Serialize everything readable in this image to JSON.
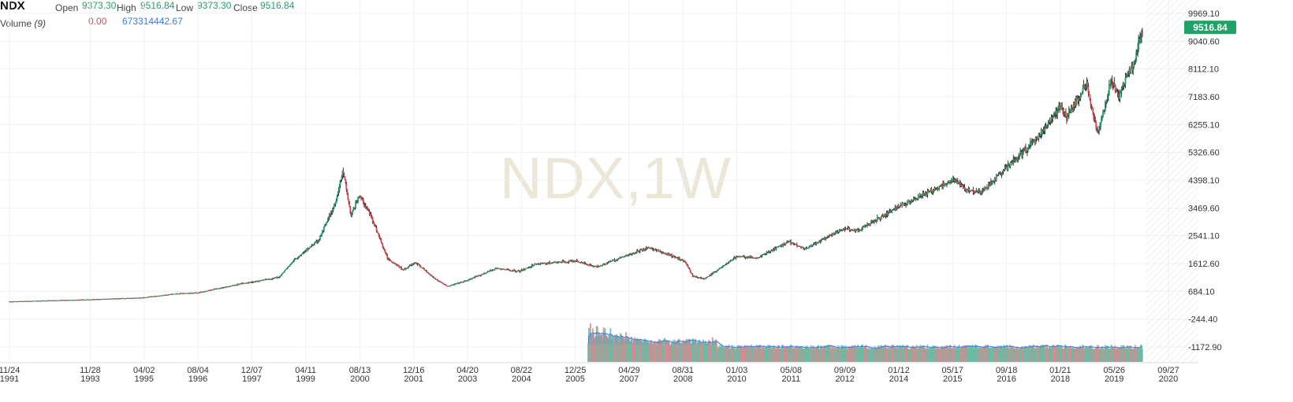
{
  "legend": {
    "symbol": "NDX",
    "open_label": "Open",
    "open_value": "9373.30",
    "high_label": "High",
    "high_value": "9516.84",
    "low_label": "Low",
    "low_value": "9373.30",
    "close_label": "Close",
    "close_value": "9516.84",
    "volume_label": "Volume",
    "volume_param": "(9)",
    "volume_value_1": "0.00",
    "volume_value_2": "673314442.67"
  },
  "watermark": "NDX,1W",
  "colors": {
    "up": "#1ea367",
    "down": "#e0474c",
    "wick": "#111111",
    "grid": "#eef0f3",
    "volume_ma": "#3b7dd8",
    "badge": "#1ea367",
    "watermark": "#ebe6d6"
  },
  "chart_data": {
    "type": "candlestick",
    "interval": "1W",
    "symbol": "NDX",
    "last_price_label": "9516.84",
    "ylim": [
      -1172.9,
      10300
    ],
    "y_ticks": [
      "9969.10",
      "9040.60",
      "8112.10",
      "7183.60",
      "6255.10",
      "5326.60",
      "4398.10",
      "3469.60",
      "2541.10",
      "1612.60",
      "684.10",
      "-244.40",
      "-1172.90"
    ],
    "y_tick_values": [
      9969.1,
      9040.6,
      8112.1,
      7183.6,
      6255.1,
      5326.6,
      4398.1,
      3469.6,
      2541.1,
      1612.6,
      684.1,
      -244.4,
      -1172.9
    ],
    "x_ticks": [
      {
        "date": "11/24",
        "year": "1991",
        "t": 1991.9
      },
      {
        "date": "11/28",
        "year": "1993",
        "t": 1993.91
      },
      {
        "date": "04/02",
        "year": "1995",
        "t": 1995.25
      },
      {
        "date": "08/04",
        "year": "1996",
        "t": 1996.59
      },
      {
        "date": "12/07",
        "year": "1997",
        "t": 1997.93
      },
      {
        "date": "04/11",
        "year": "1999",
        "t": 1999.27
      },
      {
        "date": "08/13",
        "year": "2000",
        "t": 2000.62
      },
      {
        "date": "12/16",
        "year": "2001",
        "t": 2001.96
      },
      {
        "date": "04/20",
        "year": "2003",
        "t": 2003.3
      },
      {
        "date": "08/22",
        "year": "2004",
        "t": 2004.64
      },
      {
        "date": "12/25",
        "year": "2005",
        "t": 2005.98
      },
      {
        "date": "04/29",
        "year": "2007",
        "t": 2007.32
      },
      {
        "date": "08/31",
        "year": "2008",
        "t": 2008.66
      },
      {
        "date": "01/03",
        "year": "2010",
        "t": 2010.0
      },
      {
        "date": "05/08",
        "year": "2011",
        "t": 2011.35
      },
      {
        "date": "09/09",
        "year": "2012",
        "t": 2012.69
      },
      {
        "date": "01/12",
        "year": "2014",
        "t": 2014.03
      },
      {
        "date": "05/17",
        "year": "2015",
        "t": 2015.37
      },
      {
        "date": "09/18",
        "year": "2016",
        "t": 2016.71
      },
      {
        "date": "01/21",
        "year": "2018",
        "t": 2018.05
      },
      {
        "date": "05/26",
        "year": "2019",
        "t": 2019.39
      },
      {
        "date": "09/27",
        "year": "2020",
        "t": 2020.74
      }
    ],
    "series": [
      {
        "name": "NDX",
        "points": [
          {
            "t": 1991.9,
            "v": 340
          },
          {
            "t": 1993.9,
            "v": 410
          },
          {
            "t": 1995.2,
            "v": 470
          },
          {
            "t": 1996.0,
            "v": 600
          },
          {
            "t": 1996.6,
            "v": 640
          },
          {
            "t": 1997.6,
            "v": 920
          },
          {
            "t": 1998.6,
            "v": 1150
          },
          {
            "t": 1999.0,
            "v": 1750
          },
          {
            "t": 1999.6,
            "v": 2400
          },
          {
            "t": 2000.0,
            "v": 3600
          },
          {
            "t": 2000.2,
            "v": 4700
          },
          {
            "t": 2000.4,
            "v": 3200
          },
          {
            "t": 2000.6,
            "v": 3900
          },
          {
            "t": 2000.9,
            "v": 3200
          },
          {
            "t": 2001.3,
            "v": 1800
          },
          {
            "t": 2001.7,
            "v": 1400
          },
          {
            "t": 2002.0,
            "v": 1650
          },
          {
            "t": 2002.5,
            "v": 1100
          },
          {
            "t": 2002.8,
            "v": 850
          },
          {
            "t": 2003.3,
            "v": 1050
          },
          {
            "t": 2004.0,
            "v": 1450
          },
          {
            "t": 2004.6,
            "v": 1350
          },
          {
            "t": 2005.0,
            "v": 1600
          },
          {
            "t": 2006.0,
            "v": 1700
          },
          {
            "t": 2006.5,
            "v": 1500
          },
          {
            "t": 2007.3,
            "v": 1900
          },
          {
            "t": 2007.8,
            "v": 2150
          },
          {
            "t": 2008.3,
            "v": 1900
          },
          {
            "t": 2008.7,
            "v": 1700
          },
          {
            "t": 2008.9,
            "v": 1200
          },
          {
            "t": 2009.2,
            "v": 1100
          },
          {
            "t": 2010.0,
            "v": 1850
          },
          {
            "t": 2010.5,
            "v": 1800
          },
          {
            "t": 2011.3,
            "v": 2350
          },
          {
            "t": 2011.7,
            "v": 2100
          },
          {
            "t": 2012.7,
            "v": 2800
          },
          {
            "t": 2013.0,
            "v": 2700
          },
          {
            "t": 2014.0,
            "v": 3500
          },
          {
            "t": 2015.4,
            "v": 4400
          },
          {
            "t": 2015.7,
            "v": 4100
          },
          {
            "t": 2016.1,
            "v": 4000
          },
          {
            "t": 2016.7,
            "v": 4800
          },
          {
            "t": 2017.5,
            "v": 5800
          },
          {
            "t": 2018.05,
            "v": 6900
          },
          {
            "t": 2018.2,
            "v": 6500
          },
          {
            "t": 2018.7,
            "v": 7600
          },
          {
            "t": 2018.98,
            "v": 5900
          },
          {
            "t": 2019.3,
            "v": 7700
          },
          {
            "t": 2019.5,
            "v": 7200
          },
          {
            "t": 2019.9,
            "v": 8400
          },
          {
            "t": 2020.1,
            "v": 9516.84
          }
        ]
      }
    ],
    "volume": {
      "series_name": "Volume",
      "start": 2006.3,
      "end": 2020.1
    }
  }
}
